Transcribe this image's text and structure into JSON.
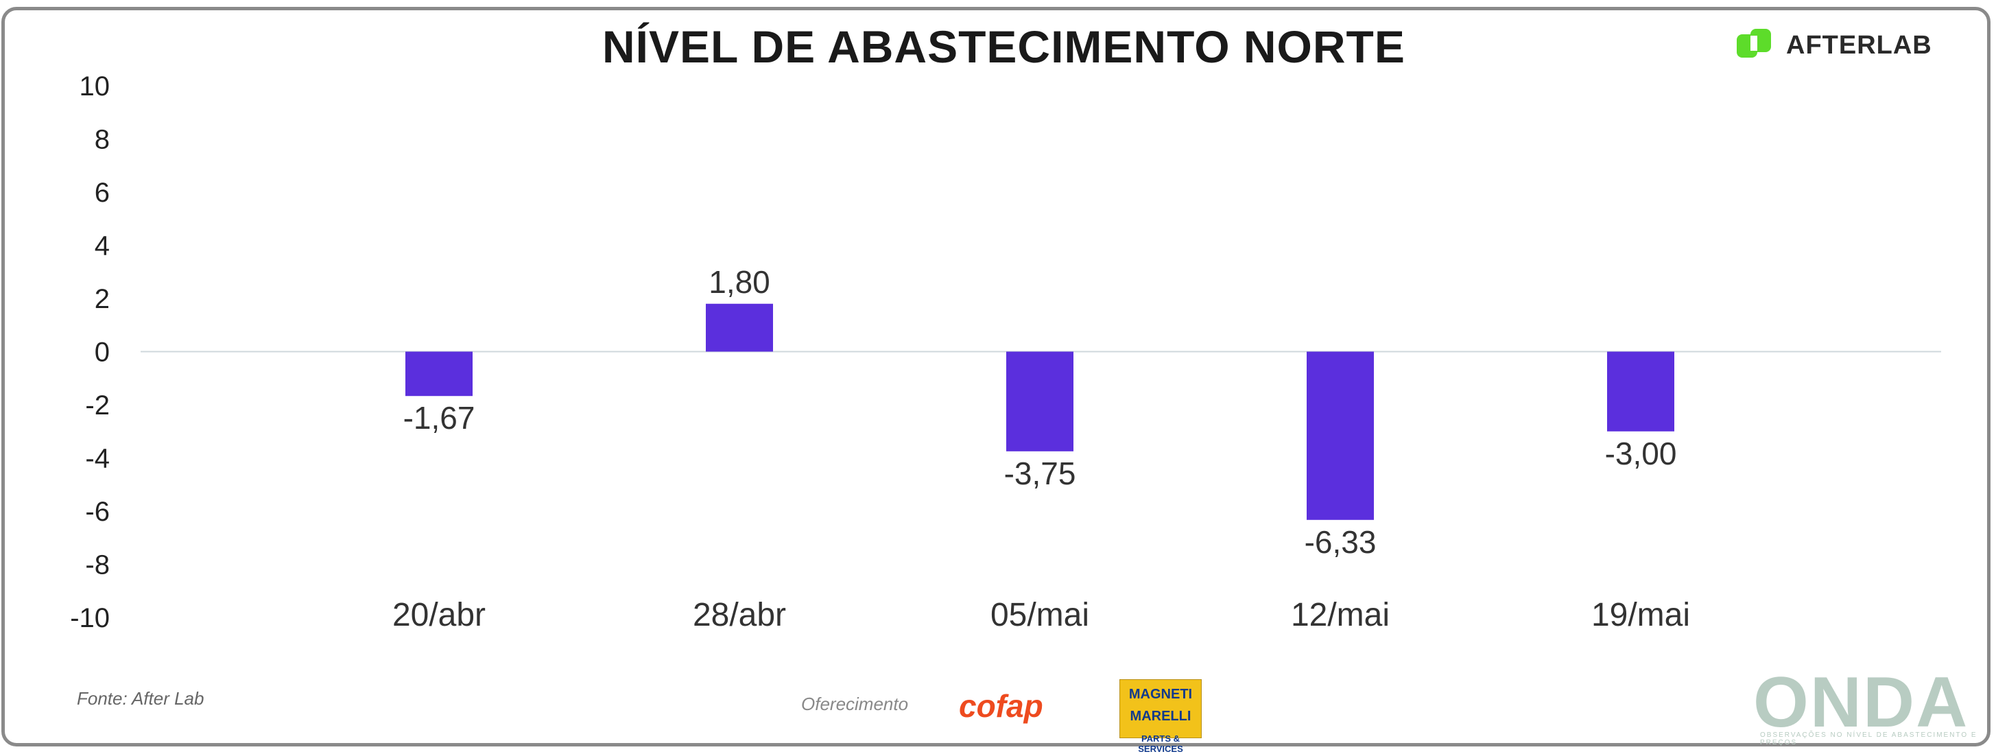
{
  "header": {
    "title": "NÍVEL DE ABASTECIMENTO NORTE",
    "brand": "AFTERLAB"
  },
  "chart_data": {
    "type": "bar",
    "title": "NÍVEL DE ABASTECIMENTO NORTE",
    "categories": [
      "20/abr",
      "28/abr",
      "05/mai",
      "12/mai",
      "19/mai"
    ],
    "values": [
      -1.67,
      1.8,
      -3.75,
      -6.33,
      -3.0
    ],
    "value_labels": [
      "-1,67",
      "1,80",
      "-3,75",
      "-6,33",
      "-3,00"
    ],
    "y_ticks": [
      10,
      8,
      6,
      4,
      2,
      0,
      -2,
      -4,
      -6,
      -8,
      -10
    ],
    "ylim": [
      -10,
      10
    ],
    "xlabel": "",
    "ylabel": "",
    "grid": false,
    "legend": "none",
    "bar_color": "#5b2fdd",
    "zero_line_color": "#cfd8dc"
  },
  "footer": {
    "source": "Fonte: After Lab",
    "sponsor_label": "Oferecimento",
    "sponsor_1": "cofap",
    "sponsor_2_line1": "MAGNETI",
    "sponsor_2_line2": "MARELLI",
    "sponsor_2_line3": "PARTS & SERVICES",
    "watermark": "ONDA",
    "watermark_sub": "OBSERVAÇÕES NO NÍVEL DE ABASTECIMENTO E PREÇOS"
  },
  "colors": {
    "brand_green": "#5ddc2a",
    "cofap_orange": "#ee4b1f",
    "magneti_yellow": "#f2c21a"
  }
}
